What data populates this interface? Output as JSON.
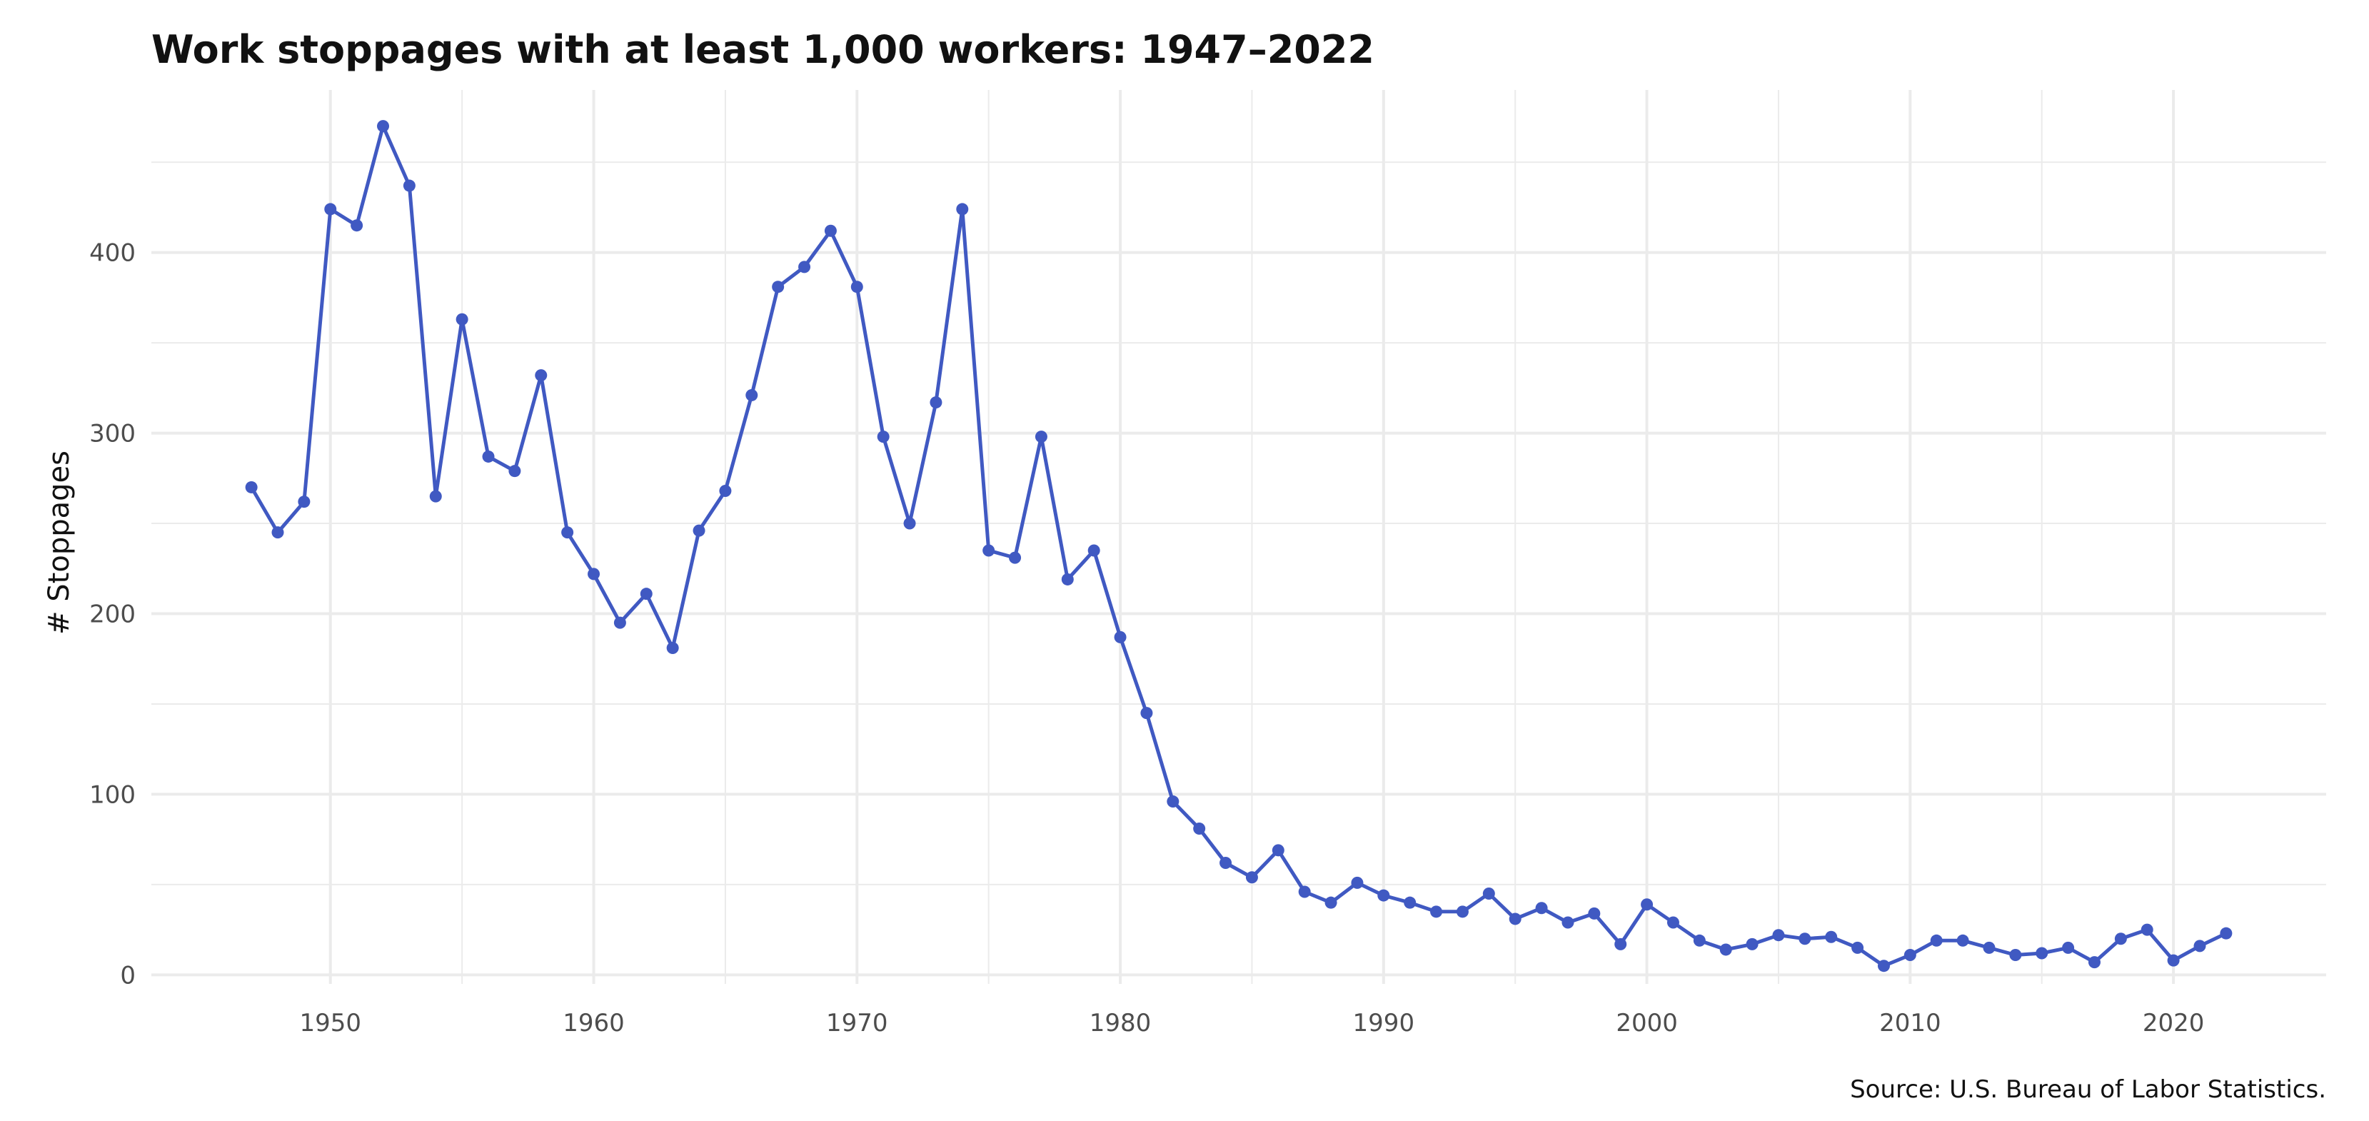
{
  "chart_data": {
    "type": "line",
    "title": "Work stoppages with at least 1,000 workers: 1947–2022",
    "xlabel": "",
    "ylabel": "# Stoppages",
    "source": "Source: U.S. Bureau of Labor Statistics.",
    "xlim": [
      1943.2,
      2025.8
    ],
    "ylim": [
      -5,
      490
    ],
    "x_ticks": [
      1950,
      1960,
      1970,
      1980,
      1990,
      2000,
      2010,
      2020
    ],
    "y_ticks": [
      0,
      100,
      200,
      300,
      400
    ],
    "grid": true,
    "legend": "none",
    "line_color": "#4059c2",
    "series": [
      {
        "x": [
          1947,
          1948,
          1949,
          1950,
          1951,
          1952,
          1953,
          1954,
          1955,
          1956,
          1957,
          1958,
          1959,
          1960,
          1961,
          1962,
          1963,
          1964,
          1965,
          1966,
          1967,
          1968,
          1969,
          1970,
          1971,
          1972,
          1973,
          1974,
          1975,
          1976,
          1977,
          1978,
          1979,
          1980,
          1981,
          1982,
          1983,
          1984,
          1985,
          1986,
          1987,
          1988,
          1989,
          1990,
          1991,
          1992,
          1993,
          1994,
          1995,
          1996,
          1997,
          1998,
          1999,
          2000,
          2001,
          2002,
          2003,
          2004,
          2005,
          2006,
          2007,
          2008,
          2009,
          2010,
          2011,
          2012,
          2013,
          2014,
          2015,
          2016,
          2017,
          2018,
          2019,
          2020,
          2021,
          2022
        ],
        "y": [
          270,
          245,
          262,
          424,
          415,
          470,
          437,
          265,
          363,
          287,
          279,
          332,
          245,
          222,
          195,
          211,
          181,
          246,
          268,
          321,
          381,
          392,
          412,
          381,
          298,
          250,
          317,
          424,
          235,
          231,
          298,
          219,
          235,
          187,
          145,
          96,
          81,
          62,
          54,
          69,
          46,
          40,
          51,
          44,
          40,
          35,
          35,
          45,
          31,
          37,
          29,
          34,
          17,
          39,
          29,
          19,
          14,
          17,
          22,
          20,
          21,
          15,
          5,
          11,
          19,
          19,
          15,
          11,
          12,
          15,
          7,
          20,
          25,
          8,
          16,
          23
        ]
      }
    ]
  }
}
